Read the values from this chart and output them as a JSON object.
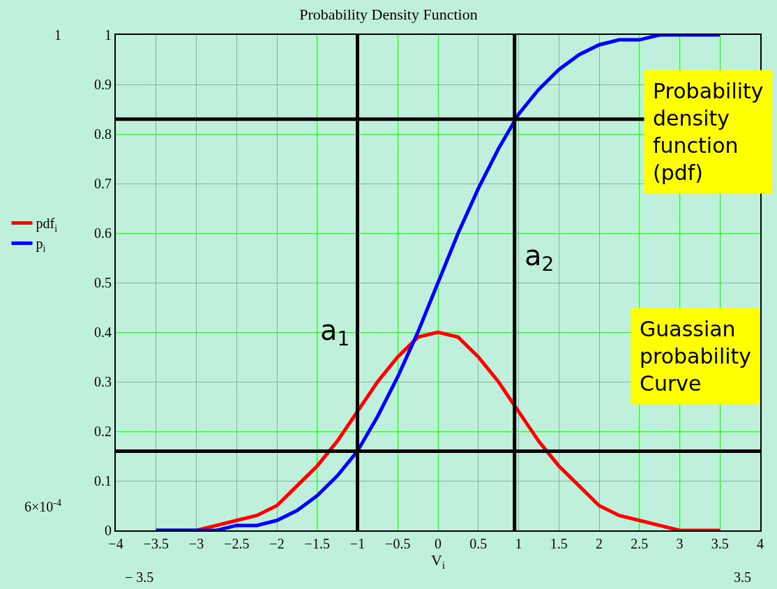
{
  "chart_data": {
    "type": "line",
    "title": "Probability Density Function",
    "xlabel": "V$_{i}$",
    "x": [
      -3.5,
      -3.25,
      -3,
      -2.75,
      -2.5,
      -2.25,
      -2,
      -1.75,
      -1.5,
      -1.25,
      -1,
      -0.75,
      -0.5,
      -0.25,
      0,
      0.25,
      0.5,
      0.75,
      1,
      1.25,
      1.5,
      1.75,
      2,
      2.25,
      2.5,
      2.75,
      3,
      3.25,
      3.5
    ],
    "series": [
      {
        "name": "pdf$_{i}$",
        "color": "#ff0000",
        "values": [
          0,
          0,
          0,
          0.01,
          0.02,
          0.03,
          0.05,
          0.09,
          0.13,
          0.18,
          0.24,
          0.3,
          0.35,
          0.39,
          0.4,
          0.39,
          0.35,
          0.3,
          0.24,
          0.18,
          0.13,
          0.09,
          0.05,
          0.03,
          0.02,
          0.01,
          0,
          0,
          0
        ]
      },
      {
        "name": "p$_{i}$",
        "color": "#0000ff",
        "values": [
          0,
          0,
          0,
          0,
          0.01,
          0.01,
          0.02,
          0.04,
          0.07,
          0.11,
          0.16,
          0.23,
          0.31,
          0.4,
          0.5,
          0.6,
          0.69,
          0.77,
          0.84,
          0.89,
          0.93,
          0.96,
          0.98,
          0.99,
          0.99,
          1,
          1,
          1,
          1
        ]
      }
    ],
    "xlim": [
      -4,
      4
    ],
    "xticks": [
      -4,
      -3.5,
      -3,
      -2.5,
      -2,
      -1.5,
      -1,
      -0.5,
      0,
      0.5,
      1,
      1.5,
      2,
      2.5,
      3,
      3.5,
      4
    ],
    "ylim": [
      0,
      1
    ],
    "yticks": [
      0,
      0.1,
      0.2,
      0.3,
      0.4,
      0.5,
      0.6,
      0.7,
      0.8,
      0.9,
      1
    ],
    "ref_lines": [
      {
        "axis": "x",
        "value": -1,
        "label": "a$_{1}$",
        "color": "#000000"
      },
      {
        "axis": "x",
        "value": 0.95,
        "label": "a$_{2}$",
        "color": "#000000"
      },
      {
        "axis": "y",
        "value": 0.16,
        "color": "#000000"
      },
      {
        "axis": "y",
        "value": 0.83,
        "color": "#000000"
      }
    ],
    "annotations": [
      "Probability density function (pdf)",
      "Guassian probability Curve",
      "1",
      "6×10$^{-4}$",
      "− 3.5",
      "3.5"
    ],
    "grid": true,
    "legend": "left",
    "marker": "none",
    "line_style": "solid"
  }
}
